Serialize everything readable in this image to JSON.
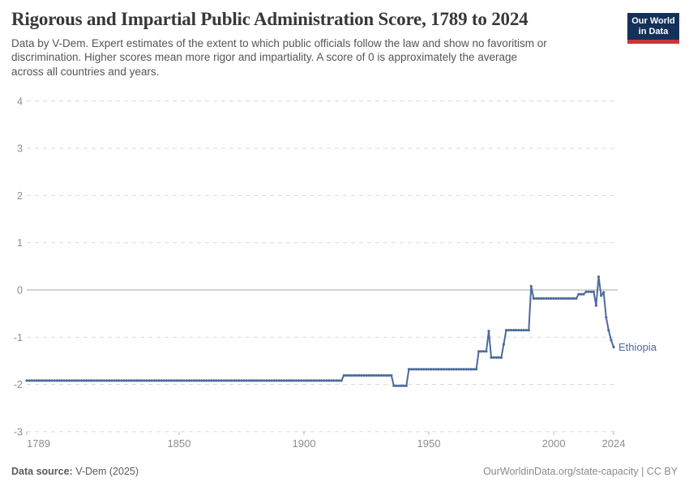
{
  "header": {
    "title": "Rigorous and Impartial Public Administration Score, 1789 to 2024",
    "subtitle_lines": [
      "Data by V-Dem. Expert estimates of the extent to which public officials follow the law and show no favoritism or",
      "discrimination. Higher scores mean more rigor and impartiality. A score of 0 is approximately the average",
      "across all countries and years."
    ]
  },
  "logo": {
    "line1": "Our World",
    "line2": "in Data",
    "bg_color": "#14315a",
    "accent_color": "#c9353d"
  },
  "footer": {
    "source_label": "Data source:",
    "source_value": " V-Dem (2025)",
    "right_text": "OurWorldinData.org/state-capacity | CC BY"
  },
  "chart_data": {
    "type": "line",
    "title": "Rigorous and Impartial Public Administration Score, 1789 to 2024",
    "xlim": [
      1789,
      2024
    ],
    "ylim": [
      -3,
      4
    ],
    "y_ticks": [
      4,
      3,
      2,
      1,
      0,
      -1,
      -2,
      -3
    ],
    "x_ticks": [
      1789,
      1850,
      1900,
      1950,
      2000,
      2024
    ],
    "grid": "dashed-horizontal",
    "zero_line_solid": true,
    "colors": {
      "line": "#4c6a9c",
      "gridline": "#dadada",
      "zero_line": "#a6a6a6",
      "axis_text": "#8d8d8d"
    },
    "series": [
      {
        "name": "Ethiopia",
        "color": "#4c6a9c",
        "segments_year_start_end_value": [
          [
            1789,
            1915,
            -1.92
          ],
          [
            1916,
            1935,
            -1.81
          ],
          [
            1936,
            1941,
            -2.03
          ],
          [
            1942,
            1969,
            -1.68
          ],
          [
            1970,
            1973,
            -1.3
          ],
          [
            1974,
            1974,
            -0.87
          ],
          [
            1975,
            1979,
            -1.43
          ],
          [
            1980,
            1980,
            -1.15
          ],
          [
            1981,
            1990,
            -0.85
          ],
          [
            1991,
            1991,
            0.08
          ],
          [
            1992,
            2009,
            -0.18
          ],
          [
            2010,
            2012,
            -0.09
          ],
          [
            2013,
            2016,
            -0.04
          ],
          [
            2017,
            2017,
            -0.33
          ],
          [
            2018,
            2018,
            0.28
          ],
          [
            2019,
            2019,
            -0.12
          ],
          [
            2020,
            2020,
            -0.05
          ],
          [
            2021,
            2021,
            -0.58
          ],
          [
            2022,
            2022,
            -0.85
          ],
          [
            2023,
            2023,
            -1.06
          ],
          [
            2024,
            2024,
            -1.21
          ]
        ]
      }
    ]
  }
}
